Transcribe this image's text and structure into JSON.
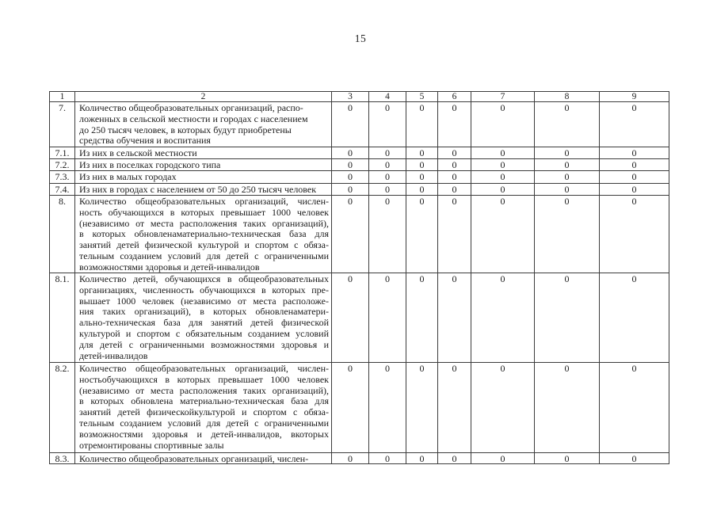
{
  "page_number": "15",
  "table": {
    "header": [
      "1",
      "2",
      "3",
      "4",
      "5",
      "6",
      "7",
      "8",
      "9"
    ],
    "rows": [
      {
        "num": "7.",
        "justify": false,
        "lines": [
          "Количество общеобразовательных организаций, распо-",
          "ложенных в сельской местности и городах с населением",
          "до 250 тысяч человек, в которых будут приобретены",
          "средства обучения и воспитания"
        ],
        "values": [
          "0",
          "0",
          "0",
          "0",
          "0",
          "0",
          "0"
        ]
      },
      {
        "num": "7.1.",
        "justify": false,
        "lines": [
          "Из них в сельской местности"
        ],
        "values": [
          "0",
          "0",
          "0",
          "0",
          "0",
          "0",
          "0"
        ]
      },
      {
        "num": "7.2.",
        "justify": false,
        "lines": [
          "Из них в поселках городского типа"
        ],
        "values": [
          "0",
          "0",
          "0",
          "0",
          "0",
          "0",
          "0"
        ]
      },
      {
        "num": "7.3.",
        "justify": false,
        "lines": [
          "Из них в малых городах"
        ],
        "values": [
          "0",
          "0",
          "0",
          "0",
          "0",
          "0",
          "0"
        ]
      },
      {
        "num": "7.4.",
        "justify": false,
        "lines": [
          "Из них в городах с населением от 50 до 250 тысяч человек"
        ],
        "values": [
          "0",
          "0",
          "0",
          "0",
          "0",
          "0",
          "0"
        ]
      },
      {
        "num": "8.",
        "justify": true,
        "lines": [
          "Количество общеобразовательных организаций, числен-",
          "ность обучающихся в которых превышает 1000 человек",
          "(независимо от места расположения таких организаций),",
          "в которых обновленаматериально-техническая база для",
          "занятий детей физической культурой и спортом с обяза-",
          "тельным созданием условий для детей с ограниченными",
          "возможностями здоровья и детей-инвалидов"
        ],
        "values": [
          "0",
          "0",
          "0",
          "0",
          "0",
          "0",
          "0"
        ]
      },
      {
        "num": "8.1.",
        "justify": true,
        "lines": [
          "Количество детей, обучающихся в общеобразовательных",
          "организациях, численность обучающихся в которых пре-",
          "вышает 1000 человек (независимо от места расположе-",
          "ния таких организаций), в которых обновленаматери-",
          "ально-техническая база для занятий детей физической",
          "культурой и спортом с обязательным созданием условий",
          "для детей с ограниченными возможностями здоровья и",
          "детей-инвалидов"
        ],
        "values": [
          "0",
          "0",
          "0",
          "0",
          "0",
          "0",
          "0"
        ]
      },
      {
        "num": "8.2.",
        "justify": true,
        "lines": [
          "Количество общеобразовательных организаций, числен-",
          "ностьобучающихся в которых превышает 1000 человек",
          "(независимо от места расположения таких организаций),",
          "в которых обновлена материально-техническая база для",
          "занятий детей физическойкультурой и спортом с обяза-",
          "тельным созданием условий для детей с ограниченными",
          "возможностями здоровья и детей-инвалидов, вкоторых",
          "отремонтированы спортивные залы"
        ],
        "values": [
          "0",
          "0",
          "0",
          "0",
          "0",
          "0",
          "0"
        ]
      },
      {
        "num": "8.3.",
        "justify": false,
        "lines": [
          "Количество общеобразовательных организаций, числен-"
        ],
        "values": [
          "0",
          "0",
          "0",
          "0",
          "0",
          "0",
          "0"
        ]
      }
    ]
  }
}
